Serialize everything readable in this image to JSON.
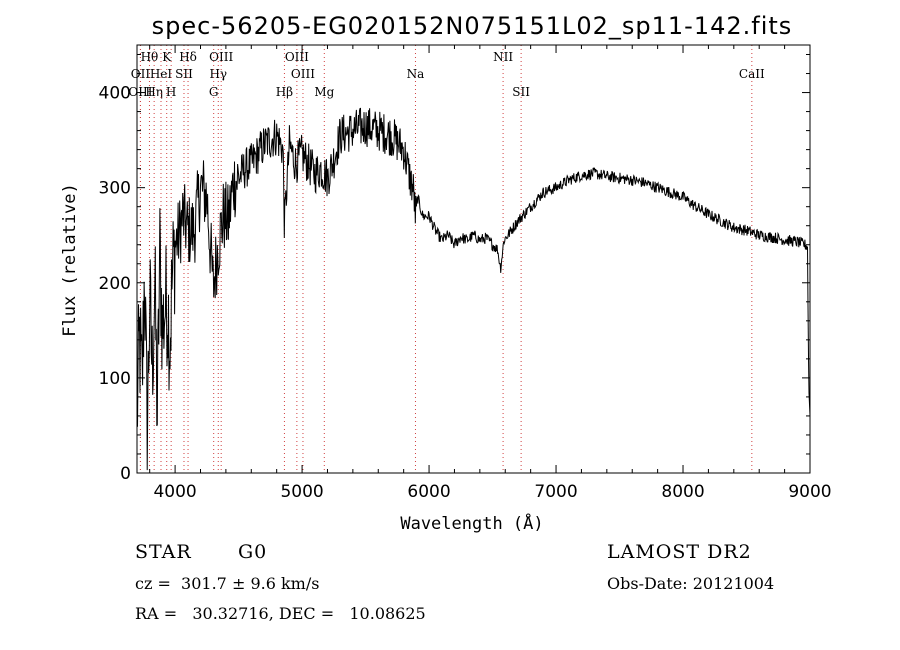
{
  "chart_data": {
    "type": "line",
    "title": "spec-56205-EG020152N075151L02_sp11-142.fits",
    "xlabel": "Wavelength (Å)",
    "ylabel": "Flux (relative)",
    "xlim": [
      3700,
      9000
    ],
    "ylim": [
      0,
      450
    ],
    "xticks": [
      4000,
      5000,
      6000,
      7000,
      8000,
      9000
    ],
    "yticks": [
      0,
      100,
      200,
      300,
      400
    ],
    "line_color": "#000000",
    "marker_line_color": "#d04040",
    "series": [
      {
        "x": [
          3700,
          3720,
          3740,
          3760,
          3780,
          3800,
          3820,
          3840,
          3860,
          3880,
          3900,
          3920,
          3940,
          3960,
          3980,
          4000,
          4030,
          4060,
          4100,
          4150,
          4200,
          4250,
          4300,
          4340,
          4380,
          4420,
          4460,
          4500,
          4550,
          4600,
          4650,
          4700,
          4750,
          4800,
          4850,
          4861,
          4900,
          4950,
          5000,
          5050,
          5100,
          5150,
          5200,
          5250,
          5300,
          5400,
          5500,
          5600,
          5700,
          5800,
          5850,
          5880,
          5893,
          5910,
          5950,
          6000,
          6050,
          6100,
          6150,
          6200,
          6250,
          6300,
          6350,
          6400,
          6450,
          6500,
          6540,
          6563,
          6590,
          6620,
          6700,
          6800,
          6900,
          7000,
          7100,
          7200,
          7300,
          7400,
          7500,
          7600,
          7700,
          7800,
          7900,
          8000,
          8100,
          8200,
          8300,
          8400,
          8500,
          8600,
          8700,
          8800,
          8900,
          8960,
          8980,
          8990,
          9000
        ],
        "y": [
          60,
          140,
          90,
          215,
          40,
          180,
          110,
          200,
          60,
          230,
          150,
          175,
          180,
          140,
          210,
          240,
          250,
          270,
          255,
          255,
          300,
          290,
          195,
          240,
          270,
          265,
          305,
          310,
          320,
          325,
          335,
          345,
          350,
          355,
          340,
          260,
          345,
          325,
          335,
          325,
          315,
          320,
          310,
          330,
          355,
          360,
          365,
          360,
          355,
          340,
          310,
          295,
          270,
          290,
          270,
          270,
          255,
          245,
          250,
          240,
          248,
          245,
          250,
          245,
          247,
          240,
          235,
          215,
          245,
          250,
          265,
          280,
          295,
          300,
          308,
          313,
          315,
          312,
          310,
          308,
          305,
          300,
          295,
          290,
          280,
          272,
          265,
          258,
          255,
          250,
          248,
          245,
          243,
          240,
          238,
          90,
          60
        ]
      }
    ],
    "lines": [
      {
        "label": "Hθ",
        "x": 3798,
        "row": 1
      },
      {
        "label": "OII",
        "x": 3727,
        "row": 2
      },
      {
        "label": "OIII",
        "x": 3727,
        "row": 3
      },
      {
        "label": "Hη",
        "x": 3835,
        "row": 3
      },
      {
        "label": "K",
        "x": 3934,
        "row": 1
      },
      {
        "label": "HeI",
        "x": 3889,
        "row": 2
      },
      {
        "label": "SII",
        "x": 4070,
        "row": 2
      },
      {
        "label": "H",
        "x": 3969,
        "row": 3
      },
      {
        "label": "Hδ",
        "x": 4102,
        "row": 1
      },
      {
        "label": "OIII",
        "x": 4363,
        "row": 1
      },
      {
        "label": "Hγ",
        "x": 4340,
        "row": 2
      },
      {
        "label": "G",
        "x": 4304,
        "row": 3
      },
      {
        "label": "Hβ",
        "x": 4861,
        "row": 3
      },
      {
        "label": "OIII",
        "x": 4959,
        "row": 1
      },
      {
        "label": "OIII",
        "x": 5007,
        "row": 2
      },
      {
        "label": "Mg",
        "x": 5175,
        "row": 3
      },
      {
        "label": "Na",
        "x": 5893,
        "row": 2
      },
      {
        "label": "NII",
        "x": 6583,
        "row": 1
      },
      {
        "label": "SII",
        "x": 6725,
        "row": 3
      },
      {
        "label": "CaII",
        "x": 8542,
        "row": 2
      }
    ]
  },
  "info": {
    "object_class": "STAR",
    "subclass": "G0",
    "survey": "LAMOST DR2",
    "redshift": "cz =  301.7 ± 9.6 km/s",
    "obs_date": "Obs-Date: 20121004",
    "coords": "RA =   30.32716, DEC =   10.08625"
  }
}
